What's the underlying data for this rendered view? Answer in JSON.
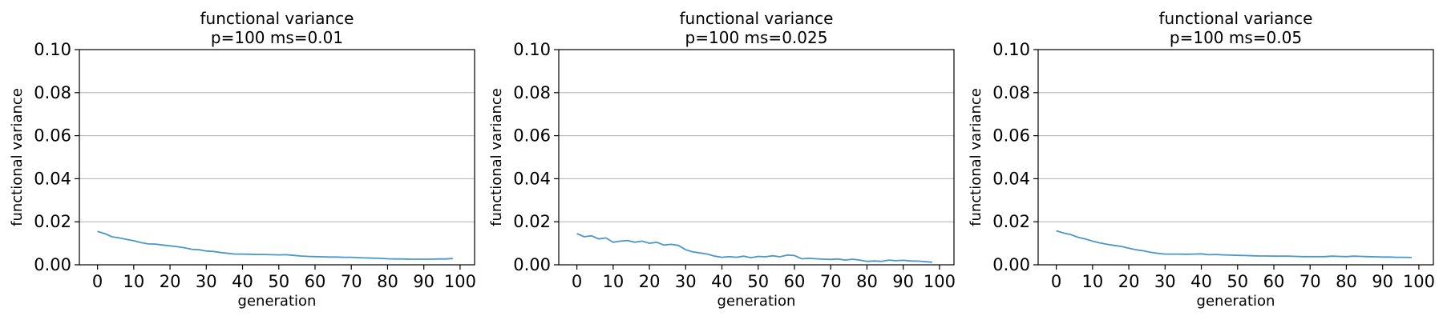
{
  "chart_data": [
    {
      "type": "line",
      "title": "functional variance",
      "subtitle": "p=100 ms=0.01",
      "xlabel": "generation",
      "ylabel": "functional variance",
      "xlim": [
        -5,
        104
      ],
      "ylim": [
        0,
        0.1
      ],
      "xticks": [
        "0",
        "10",
        "20",
        "30",
        "40",
        "50",
        "60",
        "70",
        "80",
        "90",
        "100"
      ],
      "yticks": [
        "0.00",
        "0.02",
        "0.04",
        "0.06",
        "0.08",
        "0.10"
      ],
      "grid": "y",
      "series": [
        {
          "color": "#4a97c9",
          "x": [
            0,
            2,
            4,
            6,
            8,
            10,
            12,
            14,
            16,
            18,
            20,
            22,
            24,
            26,
            28,
            30,
            32,
            34,
            36,
            38,
            40,
            42,
            44,
            46,
            48,
            50,
            52,
            54,
            56,
            58,
            60,
            62,
            64,
            66,
            68,
            70,
            72,
            74,
            76,
            78,
            80,
            82,
            84,
            86,
            88,
            90,
            92,
            94,
            96,
            98
          ],
          "y": [
            0.0155,
            0.0145,
            0.013,
            0.0125,
            0.0118,
            0.0112,
            0.0103,
            0.0097,
            0.0096,
            0.0092,
            0.0088,
            0.0084,
            0.0079,
            0.0072,
            0.007,
            0.0064,
            0.0062,
            0.0057,
            0.0053,
            0.005,
            0.005,
            0.0049,
            0.0048,
            0.0048,
            0.0047,
            0.0046,
            0.0047,
            0.0044,
            0.0041,
            0.0039,
            0.0038,
            0.0037,
            0.0036,
            0.0036,
            0.0035,
            0.0035,
            0.0033,
            0.0032,
            0.0031,
            0.003,
            0.0028,
            0.0027,
            0.0027,
            0.0026,
            0.0026,
            0.0026,
            0.0026,
            0.0027,
            0.0027,
            0.0029
          ]
        }
      ]
    },
    {
      "type": "line",
      "title": "functional variance",
      "subtitle": "p=100 ms=0.025",
      "xlabel": "generation",
      "ylabel": "functional variance",
      "xlim": [
        -5,
        104
      ],
      "ylim": [
        0,
        0.1
      ],
      "xticks": [
        "0",
        "10",
        "20",
        "30",
        "40",
        "50",
        "60",
        "70",
        "80",
        "90",
        "100"
      ],
      "yticks": [
        "0.00",
        "0.02",
        "0.04",
        "0.06",
        "0.08",
        "0.10"
      ],
      "grid": "y",
      "series": [
        {
          "color": "#4a97c9",
          "x": [
            0,
            2,
            4,
            6,
            8,
            10,
            12,
            14,
            16,
            18,
            20,
            22,
            24,
            26,
            28,
            30,
            32,
            34,
            36,
            38,
            40,
            42,
            44,
            46,
            48,
            50,
            52,
            54,
            56,
            58,
            60,
            62,
            64,
            66,
            68,
            70,
            72,
            74,
            76,
            78,
            80,
            82,
            84,
            86,
            88,
            90,
            92,
            94,
            96,
            98
          ],
          "y": [
            0.0145,
            0.013,
            0.0135,
            0.012,
            0.0125,
            0.0105,
            0.011,
            0.0113,
            0.0105,
            0.011,
            0.01,
            0.0105,
            0.0092,
            0.0095,
            0.009,
            0.007,
            0.006,
            0.0055,
            0.005,
            0.004,
            0.0035,
            0.0038,
            0.0035,
            0.004,
            0.0033,
            0.0039,
            0.0037,
            0.0042,
            0.0037,
            0.0045,
            0.0043,
            0.0028,
            0.003,
            0.0028,
            0.0026,
            0.0025,
            0.0027,
            0.0022,
            0.0026,
            0.0022,
            0.0016,
            0.0018,
            0.0016,
            0.0022,
            0.0019,
            0.0021,
            0.0018,
            0.0017,
            0.0015,
            0.0012
          ]
        }
      ]
    },
    {
      "type": "line",
      "title": "functional variance",
      "subtitle": "p=100 ms=0.05",
      "xlabel": "generation",
      "ylabel": "functional variance",
      "xlim": [
        -5,
        104
      ],
      "ylim": [
        0,
        0.1
      ],
      "xticks": [
        "0",
        "10",
        "20",
        "30",
        "40",
        "50",
        "60",
        "70",
        "80",
        "90",
        "100"
      ],
      "yticks": [
        "0.00",
        "0.02",
        "0.04",
        "0.06",
        "0.08",
        "0.10"
      ],
      "grid": "y",
      "series": [
        {
          "color": "#4a97c9",
          "x": [
            0,
            2,
            4,
            6,
            8,
            10,
            12,
            14,
            16,
            18,
            20,
            22,
            24,
            26,
            28,
            30,
            32,
            34,
            36,
            38,
            40,
            42,
            44,
            46,
            48,
            50,
            52,
            54,
            56,
            58,
            60,
            62,
            64,
            66,
            68,
            70,
            72,
            74,
            76,
            78,
            80,
            82,
            84,
            86,
            88,
            90,
            92,
            94,
            96,
            98
          ],
          "y": [
            0.0158,
            0.0148,
            0.014,
            0.0128,
            0.012,
            0.011,
            0.0102,
            0.0095,
            0.009,
            0.0085,
            0.0077,
            0.007,
            0.0065,
            0.0058,
            0.0053,
            0.005,
            0.005,
            0.005,
            0.0049,
            0.005,
            0.0051,
            0.0047,
            0.0048,
            0.0046,
            0.0045,
            0.0044,
            0.0043,
            0.0042,
            0.0041,
            0.0041,
            0.004,
            0.004,
            0.004,
            0.0039,
            0.0038,
            0.0038,
            0.0038,
            0.0038,
            0.004,
            0.0039,
            0.0038,
            0.004,
            0.0039,
            0.0038,
            0.0037,
            0.0036,
            0.0036,
            0.0035,
            0.0035,
            0.0034
          ]
        }
      ]
    }
  ]
}
